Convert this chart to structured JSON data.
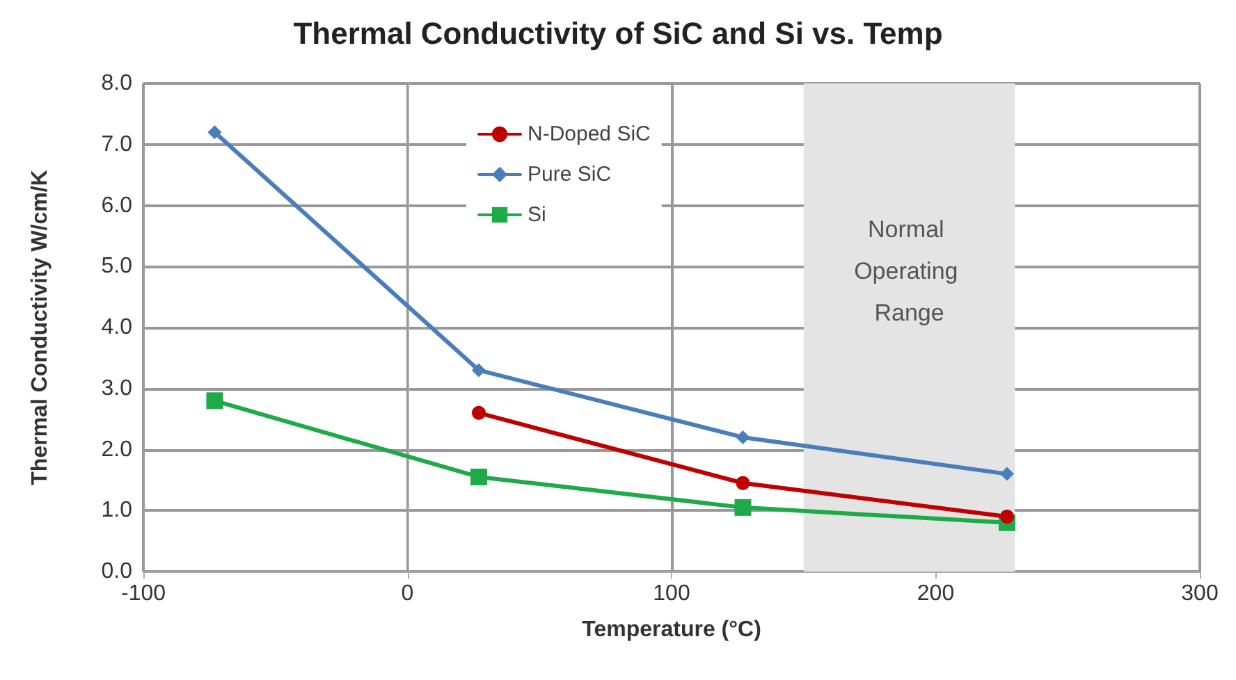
{
  "chart_data": {
    "type": "line",
    "title": "Thermal Conductivity of SiC and Si vs. Temp",
    "xlabel": "Temperature (°C)",
    "ylabel": "Thermal Conductivity W/cm/K",
    "xlim": [
      -100,
      300
    ],
    "xticks": [
      -100,
      0,
      100,
      200,
      300
    ],
    "ylim": [
      0,
      8
    ],
    "yticks": [
      {
        "value": 0,
        "label": "0.0"
      },
      {
        "value": 1,
        "label": "1.0"
      },
      {
        "value": 2,
        "label": "2.0"
      },
      {
        "value": 3,
        "label": "3.0"
      },
      {
        "value": 4,
        "label": "4.0"
      },
      {
        "value": 5,
        "label": "5.0"
      },
      {
        "value": 6,
        "label": "6.0"
      },
      {
        "value": 7,
        "label": "7.0"
      },
      {
        "value": 8,
        "label": "8.0"
      }
    ],
    "grid": true,
    "legend": "top",
    "line_style": "solid",
    "bands": [
      {
        "axis": "x",
        "from": 150,
        "to": 230,
        "label": "Normal Operating Range",
        "color": "#e4e4e4"
      }
    ],
    "series": [
      {
        "name": "N-Doped SiC",
        "color": "#c00000",
        "marker": "circle",
        "x": [
          27,
          127,
          227
        ],
        "values": [
          2.6,
          1.45,
          0.9
        ]
      },
      {
        "name": "Pure SiC",
        "color": "#4a7ebb",
        "marker": "diamond",
        "x": [
          -73,
          27,
          127,
          227
        ],
        "values": [
          7.2,
          3.3,
          2.2,
          1.6
        ]
      },
      {
        "name": "Si",
        "color": "#1faa4a",
        "marker": "square",
        "x": [
          -73,
          27,
          127,
          227
        ],
        "values": [
          2.8,
          1.55,
          1.05,
          0.8
        ]
      }
    ]
  }
}
